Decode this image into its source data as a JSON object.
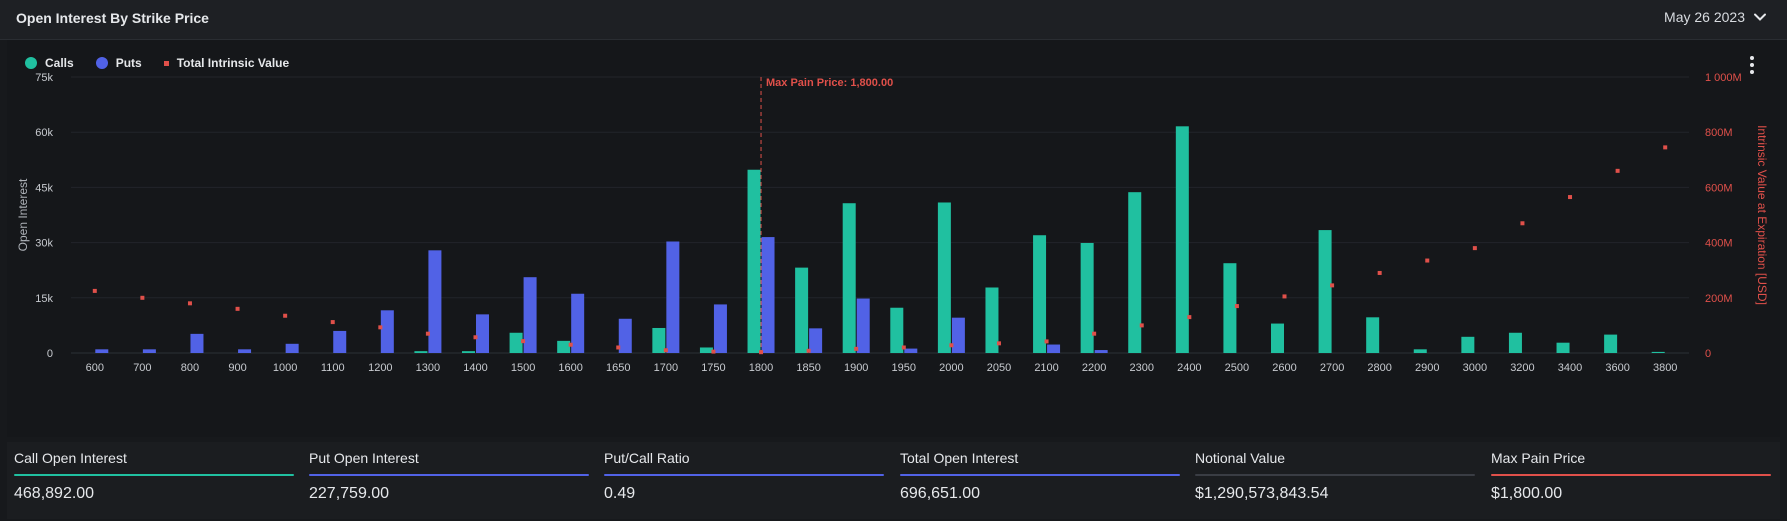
{
  "header": {
    "title": "Open Interest By Strike Price",
    "date": "May 26 2023"
  },
  "legend": [
    {
      "label": "Calls",
      "color": "#20c0a0",
      "shape": "circle"
    },
    {
      "label": "Puts",
      "color": "#5162e6",
      "shape": "circle"
    },
    {
      "label": "Total Intrinsic Value",
      "color": "#e0504a",
      "shape": "square"
    }
  ],
  "chart_data": {
    "type": "bar",
    "categories": [
      "600",
      "700",
      "800",
      "900",
      "1000",
      "1100",
      "1200",
      "1300",
      "1400",
      "1500",
      "1600",
      "1650",
      "1700",
      "1750",
      "1800",
      "1850",
      "1900",
      "1950",
      "2000",
      "2050",
      "2100",
      "2200",
      "2300",
      "2400",
      "2500",
      "2600",
      "2700",
      "2800",
      "2900",
      "3000",
      "3200",
      "3400",
      "3600",
      "3800"
    ],
    "series": [
      {
        "name": "Calls",
        "color": "#20c0a0",
        "axis": "left",
        "values": [
          0,
          0,
          0,
          0,
          0,
          0,
          0,
          500,
          500,
          5500,
          3300,
          0,
          6800,
          1500,
          49800,
          23200,
          40700,
          12300,
          40900,
          17800,
          32000,
          29900,
          43700,
          61600,
          24400,
          8000,
          33400,
          9700,
          1000,
          4400,
          5500,
          2800,
          5000,
          300
        ]
      },
      {
        "name": "Puts",
        "color": "#5162e6",
        "axis": "left",
        "values": [
          1000,
          1000,
          5200,
          1000,
          2500,
          6000,
          11600,
          27900,
          10500,
          20600,
          16100,
          9300,
          30300,
          13200,
          31500,
          6700,
          14800,
          1200,
          9600,
          0,
          2300,
          800,
          0,
          0,
          0,
          0,
          0,
          0,
          0,
          0,
          0,
          0,
          0,
          0
        ]
      },
      {
        "name": "Total Intrinsic Value",
        "color": "#e0504a",
        "axis": "right",
        "kind": "scatter",
        "values": [
          225,
          200,
          180,
          160,
          135,
          112,
          93,
          70,
          57,
          43,
          30,
          20,
          10,
          5,
          3,
          8,
          15,
          20,
          28,
          35,
          42,
          70,
          100,
          130,
          170,
          205,
          245,
          290,
          335,
          380,
          470,
          565,
          660,
          745
        ]
      }
    ],
    "ylabel": "Open Interest",
    "ylabel_right": "Intrinsic Value at Expiration [USD]",
    "ylim": [
      0,
      75000
    ],
    "ylim_right": [
      0,
      1000
    ],
    "yticks": [
      "0",
      "15k",
      "30k",
      "45k",
      "60k",
      "75k"
    ],
    "yticks_right": [
      "0",
      "200M",
      "400M",
      "600M",
      "800M",
      "1 000M"
    ],
    "annotation": {
      "category": "1800",
      "label": "Max Pain Price: 1,800.00"
    },
    "grid": true,
    "legend_position": "top-left"
  },
  "stats": [
    {
      "label": "Call Open Interest",
      "value": "468,892.00",
      "color": "#20c0a0"
    },
    {
      "label": "Put Open Interest",
      "value": "227,759.00",
      "color": "#5162e6"
    },
    {
      "label": "Put/Call Ratio",
      "value": "0.49",
      "color": "#5162e6"
    },
    {
      "label": "Total Open Interest",
      "value": "696,651.00",
      "color": "#5162e6"
    },
    {
      "label": "Notional Value",
      "value": "$1,290,573,843.54",
      "color": "#3a3d44"
    },
    {
      "label": "Max Pain Price",
      "value": "$1,800.00",
      "color": "#e0504a"
    }
  ]
}
